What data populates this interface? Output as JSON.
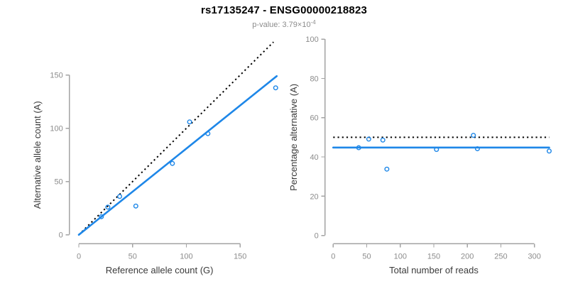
{
  "header": {
    "title": "rs17135247 - ENSG00000218823",
    "subtitle": {
      "label": "p-value:",
      "value": "3.79×10",
      "exponent": "-4"
    }
  },
  "colors": {
    "accent_blue": "#1e87e8",
    "dotted_black": "#000000",
    "axis_gray": "#a3a3a3",
    "tick_label_gray": "#8c8c8c",
    "axis_label_dark": "#3a3a3a",
    "subtitle_gray": "#8c8c8c",
    "background": "#ffffff"
  },
  "chart_data": [
    {
      "type": "scatter",
      "name": "allele-counts-scatter",
      "xlabel": "Reference allele count (G)",
      "ylabel": "Alternative allele count (A)",
      "xticks": [
        0,
        50,
        100,
        150
      ],
      "yticks": [
        0,
        50,
        100,
        150
      ],
      "xlim": [
        0,
        185
      ],
      "ylim": [
        0,
        181
      ],
      "grid": false,
      "points": [
        [
          21,
          17
        ],
        [
          27,
          26
        ],
        [
          38,
          36
        ],
        [
          53,
          27
        ],
        [
          87,
          67
        ],
        [
          103,
          106
        ],
        [
          120,
          95
        ],
        [
          183,
          138
        ]
      ],
      "lines": [
        {
          "name": "identity-line",
          "style": "dotted",
          "x": [
            0,
            181
          ],
          "y": [
            0,
            181
          ]
        },
        {
          "name": "fit-line",
          "style": "solid",
          "x": [
            0,
            184
          ],
          "y": [
            0,
            149
          ]
        }
      ]
    },
    {
      "type": "scatter",
      "name": "percentage-vs-reads-scatter",
      "xlabel": "Total number of reads",
      "ylabel": "Percentage alternative (A)",
      "xticks": [
        0,
        50,
        100,
        150,
        200,
        250,
        300
      ],
      "yticks": [
        0,
        20,
        40,
        60,
        80,
        100
      ],
      "xlim": [
        0,
        325
      ],
      "ylim": [
        0,
        100
      ],
      "grid": false,
      "points": [
        [
          38,
          44.7
        ],
        [
          53,
          49.1
        ],
        [
          74,
          48.6
        ],
        [
          80,
          33.8
        ],
        [
          154,
          43.8
        ],
        [
          209,
          51.0
        ],
        [
          215,
          44.2
        ],
        [
          322,
          43.0
        ]
      ],
      "lines": [
        {
          "name": "null-line",
          "style": "dotted",
          "x": [
            0,
            322
          ],
          "y": [
            50,
            50
          ]
        },
        {
          "name": "fit-line",
          "style": "solid",
          "x": [
            0,
            322
          ],
          "y": [
            44.8,
            44.8
          ]
        }
      ]
    }
  ]
}
